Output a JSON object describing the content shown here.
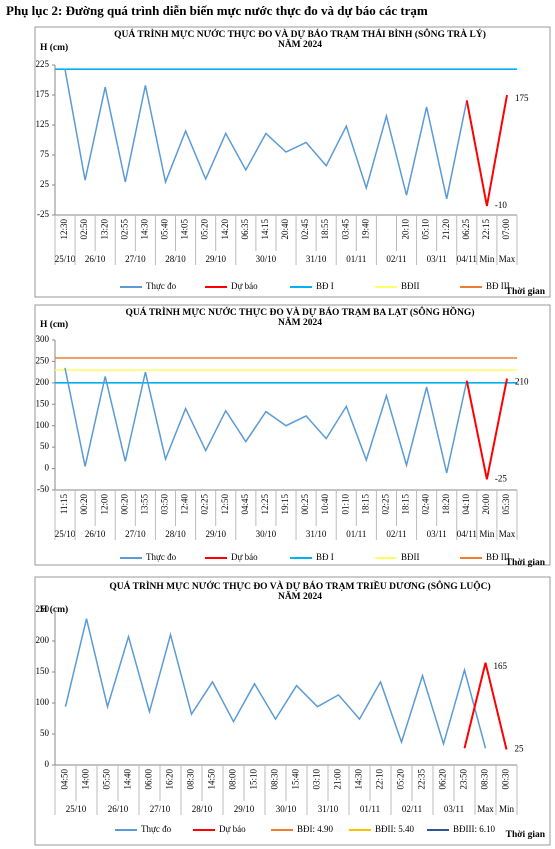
{
  "heading": "Phụ lục 2: Đường quá trình diễn biến mực nước thực đo và dự báo các trạm",
  "chart_data": [
    {
      "type": "line",
      "title": "QUÁ TRÌNH MỰC NƯỚC THỰC ĐO VÀ DỰ BÁO TRẠM THÁI BÌNH (SÔNG TRÀ LÝ)",
      "subtitle": "NĂM 2024",
      "y_label": "H (cm)",
      "x_label": "Thời gian",
      "categories": [
        "12:30",
        "02:50",
        "13:20",
        "02:55",
        "14:30",
        "05:40",
        "14:05",
        "05:20",
        "14:20",
        "06:35",
        "14:15",
        "20:40",
        "02:45",
        "18:55",
        "03:45",
        "19:40",
        null,
        "20:10",
        "05:10",
        "21:20",
        "06:25",
        "22:15",
        "07:00"
      ],
      "groups": [
        "25/10",
        "26/10",
        "27/10",
        "28/10",
        "29/10",
        "30/10",
        "31/10",
        "01/11",
        "02/11",
        "03/11",
        "04/11",
        "Min",
        "Max"
      ],
      "ylim": [
        -25,
        225
      ],
      "yticks": [
        -25,
        25,
        75,
        125,
        175,
        225
      ],
      "series": [
        {
          "name": "Thực đo",
          "color": "#5b9bd5",
          "values": [
            218,
            33,
            188,
            30,
            191,
            30,
            115,
            35,
            111,
            50,
            111,
            80,
            96,
            57,
            123,
            20,
            140,
            8,
            155,
            2,
            166,
            null,
            null
          ]
        },
        {
          "name": "Dự báo",
          "color": "#ff0000",
          "values": [
            null,
            null,
            null,
            null,
            null,
            null,
            null,
            null,
            null,
            null,
            null,
            null,
            null,
            null,
            null,
            null,
            null,
            null,
            null,
            null,
            166,
            -10,
            175
          ]
        }
      ],
      "reference_lines": [
        {
          "name": "BĐ I",
          "color": "#00b0f0",
          "value": 218
        },
        {
          "name": "BĐII",
          "color": "#ffff66",
          "value": null
        },
        {
          "name": "BĐ III",
          "color": "#ed7d31",
          "value": null
        }
      ]
    },
    {
      "type": "line",
      "title": "QUÁ TRÌNH MỰC NƯỚC THỰC ĐO VÀ DỰ BÁO TRẠM BA LẠT (SÔNG HỒNG)",
      "subtitle": "NĂM 2024",
      "y_label": "H (cm)",
      "x_label": "Thời gian",
      "categories": [
        "11:15",
        "00:20",
        "12:00",
        "00:20",
        "13:55",
        "03:50",
        "12:40",
        "02:25",
        "12:50",
        "04:45",
        "12:25",
        "19:15",
        "00:25",
        "10:40",
        "01:10",
        "18:15",
        "02:25",
        "18:15",
        "02:40",
        "18:20",
        "04:10",
        "20:00",
        "05:30"
      ],
      "groups": [
        "25/10",
        "26/10",
        "27/10",
        "28/10",
        "29/10",
        "30/10",
        "31/10",
        "01/11",
        "02/11",
        "03/11",
        "04/11",
        "Min",
        "Max"
      ],
      "ylim": [
        -50,
        300
      ],
      "yticks": [
        -50,
        0,
        50,
        100,
        150,
        200,
        250,
        300
      ],
      "series": [
        {
          "name": "Thực đo",
          "color": "#5b9bd5",
          "values": [
            235,
            5,
            215,
            17,
            225,
            22,
            140,
            42,
            135,
            63,
            133,
            100,
            123,
            70,
            145,
            20,
            170,
            8,
            190,
            -10,
            205,
            null,
            null
          ]
        },
        {
          "name": "Dự báo",
          "color": "#ff0000",
          "values": [
            null,
            null,
            null,
            null,
            null,
            null,
            null,
            null,
            null,
            null,
            null,
            null,
            null,
            null,
            null,
            null,
            null,
            null,
            null,
            null,
            205,
            -25,
            210
          ]
        }
      ],
      "reference_lines": [
        {
          "name": "BĐ I",
          "color": "#00b0f0",
          "value": 200
        },
        {
          "name": "BĐII",
          "color": "#ffff66",
          "value": 230
        },
        {
          "name": "BĐ III",
          "color": "#ed7d31",
          "value": 258
        }
      ]
    },
    {
      "type": "line",
      "title": "QUÁ TRÌNH MỰC NƯỚC THỰC ĐO VÀ DỰ BÁO TRẠM TRIỀU DƯƠNG (SÔNG LUỘC)",
      "subtitle": "NĂM 2024",
      "y_label": "H (cm)",
      "x_label": "Thời gian",
      "categories": [
        "04:50",
        "14:00",
        "05:50",
        "14:40",
        "06:00",
        "16:20",
        "08:30",
        "14:50",
        "08:00",
        "15:10",
        "08:30",
        "15:40",
        "03:10",
        "21:00",
        "14:30",
        "22:10",
        "05:20",
        "22:35",
        "06:20",
        "23:50",
        "08:30",
        "00:30"
      ],
      "groups": [
        "25/10",
        "26/10",
        "27/10",
        "28/10",
        "29/10",
        "30/10",
        "31/10",
        "01/11",
        "02/11",
        "03/11",
        "Max",
        "Min"
      ],
      "ylim": [
        0,
        250
      ],
      "yticks": [
        0,
        50,
        100,
        150,
        200,
        250
      ],
      "series": [
        {
          "name": "Thực đo",
          "color": "#5b9bd5",
          "values": [
            94,
            236,
            94,
            207,
            86,
            210,
            82,
            134,
            70,
            131,
            74,
            128,
            94,
            113,
            74,
            134,
            37,
            144,
            34,
            153,
            27,
            null
          ]
        },
        {
          "name": "Dự báo",
          "color": "#ff0000",
          "values": [
            null,
            null,
            null,
            null,
            null,
            null,
            null,
            null,
            null,
            null,
            null,
            null,
            null,
            null,
            null,
            null,
            null,
            null,
            null,
            27,
            165,
            25
          ]
        }
      ],
      "reference_lines": [
        {
          "name": "BĐI: 4.90",
          "color": "#ed7d31",
          "value": null
        },
        {
          "name": "BĐII: 5.40",
          "color": "#ffc000",
          "value": null
        },
        {
          "name": "BĐIII: 6.10",
          "color": "#2f5597",
          "value": null
        }
      ]
    }
  ]
}
